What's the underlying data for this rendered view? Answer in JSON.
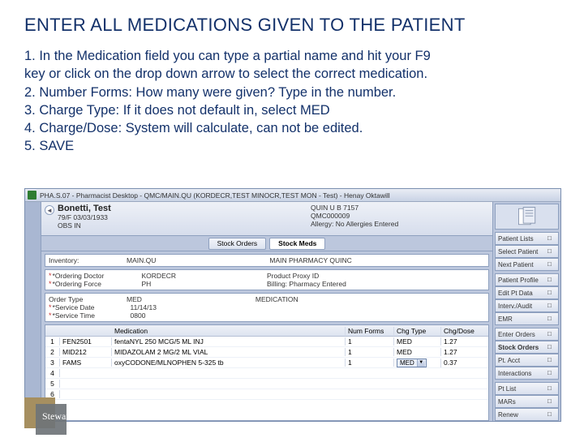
{
  "title": "ENTER ALL MEDICATIONS GIVEN TO THE PATIENT",
  "instructions": [
    "1. In the Medication field you can type a partial name and hit your F9",
    "key or click on the drop down arrow to select the correct medication.",
    "2. Number Forms: How many were given? Type in the number.",
    "3. Charge Type: If it does not default in, select MED",
    "4. Charge/Dose: System will calculate, can not be edited.",
    "5. SAVE"
  ],
  "app": {
    "titlebar": "PHA.S.07 - Pharmacist Desktop - QMC/MAIN.QU (KORDECR,TEST MINOCR,TEST MON - Test) - Henay Oktawill",
    "patient": {
      "name": "Bonetti, Test",
      "sub1": "79/F  03/03/1933",
      "sub2": "OBS IN",
      "r1": "QUIN U B 7157",
      "r2": "QMC000009",
      "r3": "Allergy: No Allergies Entered"
    },
    "tabs": {
      "t1": "Stock Orders",
      "t2": "Stock Meds"
    },
    "panel1": {
      "invLabel": "Inventory:",
      "invVal": "MAIN.QU",
      "locVal": "MAIN PHARMACY QUINC"
    },
    "panel2": {
      "l1": "*Ordering Doctor",
      "v1": "KORDECR",
      "l2": "*Ordering Force",
      "v2": "PH",
      "r1l": "Product Proxy ID",
      "r1v": "",
      "r2l": "Billing: Pharmacy Entered",
      "r2v": ""
    },
    "panel3": {
      "l1": "Order Type",
      "v1": "MED",
      "v1b": "MEDICATION",
      "l2": "*Service Date",
      "v2": "11/14/13",
      "l3": "*Service Time",
      "v3": "0800"
    },
    "table": {
      "headers": {
        "idx": "",
        "code": "",
        "med": "Medication",
        "num": "Num Forms",
        "chg": "Chg Type",
        "dose": "Chg/Dose"
      },
      "rows": [
        {
          "idx": "1",
          "code": "FEN2501",
          "med": "fentaNYL 250 MCG/5 ML INJ",
          "num": "1",
          "chg": "MED",
          "dose": "1.27"
        },
        {
          "idx": "2",
          "code": "MID212",
          "med": "MIDAZOLAM 2 MG/2 ML VIAL",
          "num": "1",
          "chg": "MED",
          "dose": "1.27"
        },
        {
          "idx": "3",
          "code": "FAMS",
          "med": "oxyCODONE/MLNOPHEN 5-325 tb",
          "num": "1",
          "chg": "MED",
          "dose": "0.37",
          "dd": true
        },
        {
          "idx": "4",
          "code": "",
          "med": "",
          "num": "",
          "chg": "",
          "dose": ""
        },
        {
          "idx": "5",
          "code": "",
          "med": "",
          "num": "",
          "chg": "",
          "dose": ""
        },
        {
          "idx": "6",
          "code": "",
          "med": "",
          "num": "",
          "chg": "",
          "dose": ""
        }
      ]
    },
    "rightButtons": [
      "Patient Lists",
      "Select Patient",
      "Next Patient",
      "",
      "Patient Profile",
      "Edit Pt Data",
      "Interv./Audit",
      "EMR",
      "",
      "Enter Orders",
      "Stock Orders",
      "Pt. Acct",
      "Interactions",
      "",
      "Pt List",
      "MARs",
      "Renew"
    ],
    "emrIndex": 7,
    "boldIndex": 10
  },
  "logo": "Steward",
  "colors": {
    "heading": "#13316a",
    "panelBorder": "#8ea0bf",
    "appBg": "#bcc7dd"
  }
}
